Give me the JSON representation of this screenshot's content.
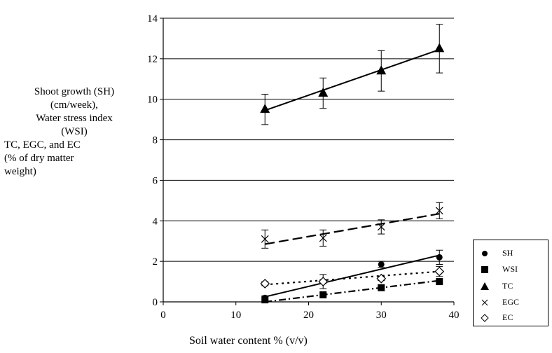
{
  "chart_data": {
    "type": "line",
    "title": "",
    "xlabel": "Soil water content % (v/v)",
    "ylabel_lines": [
      "Shoot growth (SH)",
      "(cm/week),",
      "Water stress index",
      "(WSI)",
      "TC, EGC, and EC",
      "(% of dry matter",
      "weight)"
    ],
    "xlim": [
      0,
      40
    ],
    "ylim": [
      0,
      14
    ],
    "xticks": [
      "0",
      "10",
      "20",
      "30",
      "40"
    ],
    "yticks": [
      "0",
      "2",
      "4",
      "6",
      "8",
      "10",
      "12",
      "14"
    ],
    "x": [
      14,
      22,
      30,
      38
    ],
    "grid": "horizontal",
    "legend_position": "right",
    "series": [
      {
        "name": "SH",
        "marker": "circle",
        "values": [
          0.2,
          1.0,
          1.85,
          2.2
        ],
        "errors": [
          0.1,
          0.35,
          0.15,
          0.35
        ],
        "trend": [
          0.25,
          2.3
        ],
        "trend_style": "solid"
      },
      {
        "name": "WSI",
        "marker": "square",
        "values": [
          0.1,
          0.35,
          0.7,
          1.0
        ],
        "errors": [
          0,
          0,
          0,
          0
        ],
        "trend": [
          0.0,
          1.05
        ],
        "trend_style": "dashdot"
      },
      {
        "name": "TC",
        "marker": "triangle",
        "values": [
          9.5,
          10.3,
          11.4,
          12.5
        ],
        "errors": [
          0.75,
          0.75,
          1.0,
          1.2
        ],
        "trend": [
          9.45,
          12.45
        ],
        "trend_style": "solid"
      },
      {
        "name": "EGC",
        "marker": "cross",
        "values": [
          3.1,
          3.15,
          3.7,
          4.5
        ],
        "errors": [
          0.45,
          0.4,
          0.35,
          0.4
        ],
        "trend": [
          2.85,
          4.35
        ],
        "trend_style": "dashed"
      },
      {
        "name": "EC",
        "marker": "diamond",
        "values": [
          0.9,
          1.0,
          1.15,
          1.5
        ],
        "errors": [
          0.1,
          0.1,
          0.1,
          0.25
        ],
        "trend": [
          0.85,
          1.5
        ],
        "trend_style": "dotted"
      }
    ]
  }
}
